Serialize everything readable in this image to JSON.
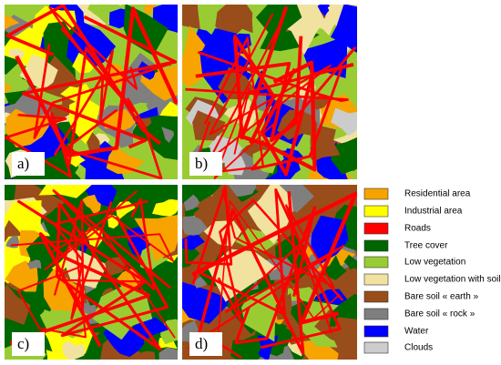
{
  "panels": [
    {
      "label": "a)"
    },
    {
      "label": "b)"
    },
    {
      "label": "c)"
    },
    {
      "label": "d)"
    }
  ],
  "legend": [
    {
      "label": "Residential area",
      "color": "#f7a400"
    },
    {
      "label": "Industrial area",
      "color": "#ffff00"
    },
    {
      "label": "Roads",
      "color": "#ff0000"
    },
    {
      "label": "Tree cover",
      "color": "#006600"
    },
    {
      "label": "Low vegetation",
      "color": "#99cc33"
    },
    {
      "label": "Low vegetation with soil",
      "color": "#f2e2a0"
    },
    {
      "label": "Bare soil « earth »",
      "color": "#994d1a"
    },
    {
      "label": "Bare soil « rock »",
      "color": "#7f7f7f"
    },
    {
      "label": "Water",
      "color": "#0000ff"
    },
    {
      "label": "Clouds",
      "color": "#cccccc"
    }
  ]
}
